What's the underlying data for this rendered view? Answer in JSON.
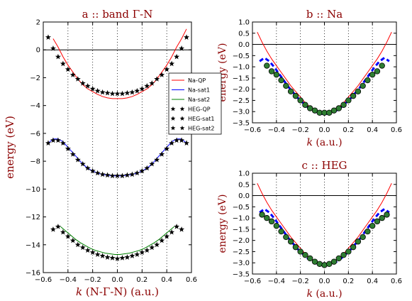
{
  "figure": {
    "colors": {
      "qp": "#ff0000",
      "sat1": "#0000ff",
      "sat2": "#008000",
      "title_text": "#8b0000",
      "dots": "#2e7d32"
    }
  },
  "legend": {
    "placement": "between panels, right of panel a",
    "entries": [
      "Na-QP",
      "Na-sat1",
      "Na-sat2",
      "HEG-QP",
      "HEG-sat1",
      "HEG-sat2"
    ]
  },
  "chart_data": [
    {
      "type": "line",
      "title": "a :: band Γ-N",
      "xlabel": "k (N-Γ-N) (a.u.)",
      "ylabel": "energy (eV)",
      "xlim": [
        -0.6,
        0.6
      ],
      "ylim": [
        -16,
        2
      ],
      "xticks": [
        -0.6,
        -0.4,
        -0.2,
        0.0,
        0.2,
        0.4,
        0.6
      ],
      "yticks": [
        2,
        0,
        -2,
        -4,
        -6,
        -8,
        -10,
        -12,
        -14,
        -16
      ],
      "xtick_labels": [
        "−0.6",
        "−0.4",
        "−0.2",
        "0.0",
        "0.2",
        "0.4",
        "0.6"
      ],
      "ytick_labels": [
        "2",
        "0",
        "−2",
        "−4",
        "−6",
        "−8",
        "−10",
        "−12",
        "−14",
        "−16"
      ],
      "vertical_dotted_lines": [
        -0.4,
        -0.2,
        0.0,
        0.2,
        0.4
      ],
      "horizontal_reference": 0,
      "series": [
        {
          "name": "Na-QP",
          "style": "line",
          "color": "#ff0000",
          "x": [
            -0.52,
            -0.48,
            -0.44,
            -0.4,
            -0.36,
            -0.32,
            -0.28,
            -0.24,
            -0.2,
            -0.16,
            -0.12,
            -0.08,
            -0.04,
            0.0,
            0.04,
            0.08,
            0.12,
            0.16,
            0.2,
            0.24,
            0.28,
            0.32,
            0.36,
            0.4,
            0.44,
            0.48,
            0.52,
            0.56
          ],
          "y": [
            0.8,
            0.2,
            -0.5,
            -1.1,
            -1.6,
            -2.1,
            -2.5,
            -2.8,
            -3.0,
            -3.2,
            -3.35,
            -3.45,
            -3.5,
            -3.5,
            -3.5,
            -3.45,
            -3.35,
            -3.2,
            -3.0,
            -2.8,
            -2.5,
            -2.1,
            -1.6,
            -1.1,
            -0.5,
            0.2,
            0.8,
            1.5
          ]
        },
        {
          "name": "Na-sat1",
          "style": "line",
          "color": "#0000ff",
          "x": [
            -0.56,
            -0.52,
            -0.48,
            -0.44,
            -0.4,
            -0.36,
            -0.32,
            -0.28,
            -0.24,
            -0.2,
            -0.16,
            -0.12,
            -0.08,
            -0.04,
            0.0,
            0.04,
            0.08,
            0.12,
            0.16,
            0.2,
            0.24,
            0.28,
            0.32,
            0.36,
            0.4,
            0.44,
            0.48,
            0.52,
            0.56
          ],
          "y": [
            -6.7,
            -6.4,
            -6.4,
            -6.6,
            -7.0,
            -7.4,
            -7.8,
            -8.2,
            -8.5,
            -8.7,
            -8.85,
            -8.95,
            -9.0,
            -9.05,
            -9.05,
            -9.05,
            -9.0,
            -8.95,
            -8.85,
            -8.7,
            -8.5,
            -8.2,
            -7.8,
            -7.4,
            -7.0,
            -6.6,
            -6.4,
            -6.4,
            -6.7
          ]
        },
        {
          "name": "Na-sat2",
          "style": "line",
          "color": "#008000",
          "x": [
            -0.46,
            -0.42,
            -0.38,
            -0.34,
            -0.3,
            -0.26,
            -0.22,
            -0.18,
            -0.14,
            -0.1,
            -0.06,
            -0.02,
            0.02,
            0.06,
            0.1,
            0.14,
            0.18,
            0.22,
            0.26,
            0.3,
            0.34,
            0.38,
            0.42,
            0.46
          ],
          "y": [
            -12.7,
            -13.0,
            -13.3,
            -13.6,
            -13.85,
            -14.05,
            -14.25,
            -14.4,
            -14.5,
            -14.6,
            -14.65,
            -14.7,
            -14.7,
            -14.65,
            -14.6,
            -14.5,
            -14.4,
            -14.25,
            -14.05,
            -13.85,
            -13.6,
            -13.3,
            -13.0,
            -12.7
          ]
        },
        {
          "name": "HEG-QP",
          "style": "stars",
          "color": "#000000",
          "x": [
            -0.56,
            -0.52,
            -0.48,
            -0.44,
            -0.4,
            -0.36,
            -0.32,
            -0.28,
            -0.24,
            -0.2,
            -0.16,
            -0.12,
            -0.08,
            -0.04,
            0.0,
            0.04,
            0.08,
            0.12,
            0.16,
            0.2,
            0.24,
            0.28,
            0.32,
            0.36,
            0.4,
            0.44,
            0.48,
            0.52,
            0.56
          ],
          "y": [
            0.9,
            0.1,
            -0.5,
            -1.0,
            -1.4,
            -1.8,
            -2.1,
            -2.4,
            -2.6,
            -2.8,
            -2.95,
            -3.05,
            -3.1,
            -3.15,
            -3.15,
            -3.15,
            -3.1,
            -3.05,
            -2.95,
            -2.8,
            -2.6,
            -2.4,
            -2.1,
            -1.8,
            -1.4,
            -1.0,
            -0.5,
            0.1,
            0.9
          ]
        },
        {
          "name": "HEG-sat1",
          "style": "stars",
          "color": "#000000",
          "x": [
            -0.56,
            -0.52,
            -0.48,
            -0.44,
            -0.4,
            -0.36,
            -0.32,
            -0.28,
            -0.24,
            -0.2,
            -0.16,
            -0.12,
            -0.08,
            -0.04,
            0.0,
            0.04,
            0.08,
            0.12,
            0.16,
            0.2,
            0.24,
            0.28,
            0.32,
            0.36,
            0.4,
            0.44,
            0.48,
            0.52,
            0.56
          ],
          "y": [
            -6.7,
            -6.5,
            -6.5,
            -6.7,
            -7.1,
            -7.5,
            -7.9,
            -8.2,
            -8.5,
            -8.7,
            -8.85,
            -8.95,
            -9.0,
            -9.05,
            -9.05,
            -9.05,
            -9.0,
            -8.95,
            -8.85,
            -8.7,
            -8.5,
            -8.2,
            -7.9,
            -7.5,
            -7.1,
            -6.7,
            -6.5,
            -6.5,
            -6.7
          ]
        },
        {
          "name": "HEG-sat2",
          "style": "stars",
          "color": "#000000",
          "x": [
            -0.52,
            -0.48,
            -0.44,
            -0.4,
            -0.36,
            -0.32,
            -0.28,
            -0.24,
            -0.2,
            -0.16,
            -0.12,
            -0.08,
            -0.04,
            0.0,
            0.04,
            0.08,
            0.12,
            0.16,
            0.2,
            0.24,
            0.28,
            0.32,
            0.36,
            0.4,
            0.44,
            0.48,
            0.52
          ],
          "y": [
            -12.9,
            -12.7,
            -13.1,
            -13.4,
            -13.7,
            -14.0,
            -14.2,
            -14.4,
            -14.55,
            -14.7,
            -14.8,
            -14.9,
            -14.95,
            -15.0,
            -14.95,
            -14.9,
            -14.8,
            -14.7,
            -14.55,
            -14.4,
            -14.2,
            -14.0,
            -13.7,
            -13.4,
            -13.1,
            -12.7,
            -12.9
          ]
        }
      ]
    },
    {
      "type": "line",
      "title": "b :: Na",
      "xlabel": "k (a.u.)",
      "ylabel": "energy (eV)",
      "xlim": [
        -0.6,
        0.6
      ],
      "ylim": [
        -3.5,
        1.0
      ],
      "xticks": [
        -0.6,
        -0.4,
        -0.2,
        0.0,
        0.2,
        0.4,
        0.6
      ],
      "yticks": [
        1.0,
        0.5,
        0.0,
        -0.5,
        -1.0,
        -1.5,
        -2.0,
        -2.5,
        -3.0,
        -3.5
      ],
      "xtick_labels": [
        "−0.6",
        "−0.4",
        "−0.2",
        "0.0",
        "0.2",
        "0.4",
        "0.6"
      ],
      "ytick_labels": [
        "1.0",
        "0.5",
        "0.0",
        "−0.5",
        "−1.0",
        "−1.5",
        "−2.0",
        "−2.5",
        "−3.0",
        "−3.5"
      ],
      "vertical_dotted_lines": [
        -0.4,
        -0.2,
        0.0,
        0.2,
        0.4
      ],
      "horizontal_reference": 0,
      "series": [
        {
          "style": "line",
          "color": "#ff0000",
          "x": [
            -0.56,
            -0.52,
            -0.48,
            -0.44,
            -0.4,
            -0.36,
            -0.32,
            -0.28,
            -0.24,
            -0.2,
            -0.16,
            -0.12,
            -0.08,
            -0.04,
            0.0,
            0.04,
            0.08,
            0.12,
            0.16,
            0.2,
            0.24,
            0.28,
            0.32,
            0.36,
            0.4,
            0.44,
            0.48,
            0.52,
            0.56
          ],
          "y": [
            0.55,
            0.1,
            -0.3,
            -0.65,
            -0.95,
            -1.25,
            -1.55,
            -1.85,
            -2.1,
            -2.35,
            -2.6,
            -2.8,
            -2.95,
            -3.05,
            -3.1,
            -3.05,
            -2.95,
            -2.8,
            -2.6,
            -2.35,
            -2.1,
            -1.85,
            -1.55,
            -1.25,
            -0.95,
            -0.65,
            -0.3,
            0.1,
            0.55
          ]
        },
        {
          "style": "dashed",
          "color": "#0000ff",
          "x": [
            -0.54,
            -0.5,
            -0.46,
            -0.42,
            -0.38,
            -0.34,
            -0.3,
            -0.26,
            -0.22,
            -0.18,
            -0.14,
            -0.1,
            -0.06,
            -0.02,
            0.02,
            0.06,
            0.1,
            0.14,
            0.18,
            0.22,
            0.26,
            0.3,
            0.34,
            0.38,
            0.42,
            0.46,
            0.5,
            0.54
          ],
          "y": [
            -0.75,
            -0.6,
            -0.75,
            -1.0,
            -1.3,
            -1.6,
            -1.9,
            -2.15,
            -2.4,
            -2.6,
            -2.8,
            -2.95,
            -3.05,
            -3.1,
            -3.1,
            -3.05,
            -2.95,
            -2.8,
            -2.6,
            -2.4,
            -2.15,
            -1.9,
            -1.6,
            -1.3,
            -1.0,
            -0.75,
            -0.6,
            -0.75
          ]
        },
        {
          "style": "dots",
          "color": "#2e7d32",
          "x": [
            -0.48,
            -0.44,
            -0.4,
            -0.36,
            -0.32,
            -0.28,
            -0.24,
            -0.2,
            -0.16,
            -0.12,
            -0.08,
            -0.04,
            0.0,
            0.04,
            0.08,
            0.12,
            0.16,
            0.2,
            0.24,
            0.28,
            0.32,
            0.36,
            0.4,
            0.44,
            0.48
          ],
          "y": [
            -0.95,
            -1.2,
            -1.35,
            -1.6,
            -1.85,
            -2.1,
            -2.3,
            -2.5,
            -2.7,
            -2.85,
            -2.95,
            -3.05,
            -3.05,
            -3.05,
            -2.95,
            -2.85,
            -2.7,
            -2.5,
            -2.3,
            -2.1,
            -1.85,
            -1.6,
            -1.35,
            -1.2,
            -0.95
          ]
        }
      ]
    },
    {
      "type": "line",
      "title": "c :: HEG",
      "xlabel": "k (a.u.)",
      "ylabel": "energy (eV)",
      "xlim": [
        -0.6,
        0.6
      ],
      "ylim": [
        -3.5,
        1.0
      ],
      "xticks": [
        -0.6,
        -0.4,
        -0.2,
        0.0,
        0.2,
        0.4,
        0.6
      ],
      "yticks": [
        1.0,
        0.5,
        0.0,
        -0.5,
        -1.0,
        -1.5,
        -2.0,
        -2.5,
        -3.0,
        -3.5
      ],
      "xtick_labels": [
        "−0.6",
        "−0.4",
        "−0.2",
        "0.0",
        "0.2",
        "0.4",
        "0.6"
      ],
      "ytick_labels": [
        "1.0",
        "0.5",
        "0.0",
        "−0.5",
        "−1.0",
        "−1.5",
        "−2.0",
        "−2.5",
        "−3.0",
        "−3.5"
      ],
      "vertical_dotted_lines": [
        -0.4,
        -0.2,
        0.0,
        0.2,
        0.4
      ],
      "horizontal_reference": 0,
      "series": [
        {
          "style": "line",
          "color": "#ff0000",
          "x": [
            -0.56,
            -0.52,
            -0.48,
            -0.44,
            -0.4,
            -0.36,
            -0.32,
            -0.28,
            -0.24,
            -0.2,
            -0.16,
            -0.12,
            -0.08,
            -0.04,
            0.0,
            0.04,
            0.08,
            0.12,
            0.16,
            0.2,
            0.24,
            0.28,
            0.32,
            0.36,
            0.4,
            0.44,
            0.48,
            0.52,
            0.56
          ],
          "y": [
            0.55,
            0.1,
            -0.3,
            -0.65,
            -0.95,
            -1.25,
            -1.55,
            -1.85,
            -2.1,
            -2.35,
            -2.6,
            -2.8,
            -2.95,
            -3.05,
            -3.1,
            -3.05,
            -2.95,
            -2.8,
            -2.6,
            -2.35,
            -2.1,
            -1.85,
            -1.55,
            -1.25,
            -0.95,
            -0.65,
            -0.3,
            0.1,
            0.55
          ]
        },
        {
          "style": "dashed",
          "color": "#0000ff",
          "x": [
            -0.54,
            -0.5,
            -0.46,
            -0.42,
            -0.38,
            -0.34,
            -0.3,
            -0.26,
            -0.22,
            -0.18,
            -0.14,
            -0.1,
            -0.06,
            -0.02,
            0.02,
            0.06,
            0.1,
            0.14,
            0.18,
            0.22,
            0.26,
            0.3,
            0.34,
            0.38,
            0.42,
            0.46,
            0.5,
            0.54
          ],
          "y": [
            -0.75,
            -0.6,
            -0.75,
            -1.0,
            -1.3,
            -1.6,
            -1.9,
            -2.15,
            -2.4,
            -2.6,
            -2.8,
            -2.95,
            -3.05,
            -3.1,
            -3.1,
            -3.05,
            -2.95,
            -2.8,
            -2.6,
            -2.4,
            -2.15,
            -1.9,
            -1.6,
            -1.3,
            -1.0,
            -0.75,
            -0.6,
            -0.75
          ]
        },
        {
          "style": "dots",
          "color": "#2e7d32",
          "x": [
            -0.52,
            -0.48,
            -0.44,
            -0.4,
            -0.36,
            -0.32,
            -0.28,
            -0.24,
            -0.2,
            -0.16,
            -0.12,
            -0.08,
            -0.04,
            0.0,
            0.04,
            0.08,
            0.12,
            0.16,
            0.2,
            0.24,
            0.28,
            0.32,
            0.36,
            0.4,
            0.44,
            0.48,
            0.52
          ],
          "y": [
            -0.85,
            -1.0,
            -1.15,
            -1.35,
            -1.6,
            -1.85,
            -2.05,
            -2.3,
            -2.5,
            -2.65,
            -2.8,
            -2.95,
            -3.05,
            -3.1,
            -3.05,
            -2.95,
            -2.8,
            -2.65,
            -2.5,
            -2.3,
            -2.05,
            -1.85,
            -1.6,
            -1.35,
            -1.15,
            -1.0,
            -0.85
          ]
        }
      ]
    }
  ]
}
